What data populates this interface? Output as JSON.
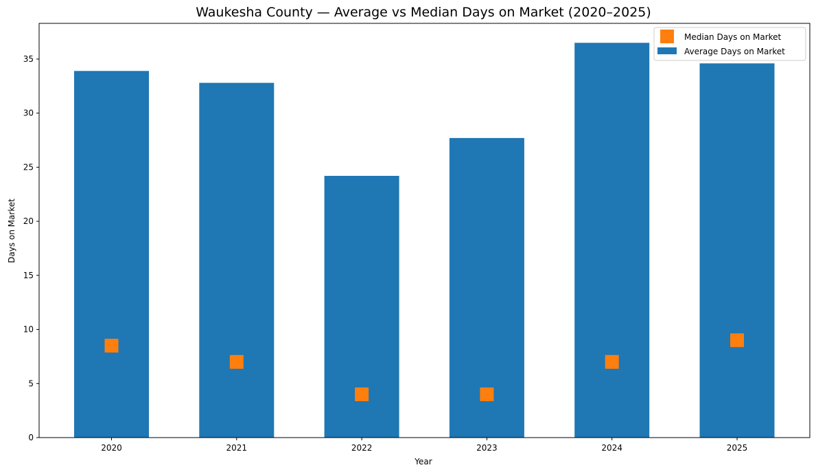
{
  "chart_data": {
    "type": "bar",
    "title": "Waukesha County — Average vs Median Days on Market (2020–2025)",
    "xlabel": "Year",
    "ylabel": "Days on Market",
    "categories": [
      "2020",
      "2021",
      "2022",
      "2023",
      "2024",
      "2025"
    ],
    "ylim": [
      0,
      38.3
    ],
    "yticks": [
      0,
      5,
      10,
      15,
      20,
      25,
      30,
      35
    ],
    "grid": false,
    "legend_position": "top-right",
    "series": [
      {
        "name": "Average Days on Market",
        "kind": "bar",
        "color": "#1f77b4",
        "values": [
          33.9,
          32.8,
          24.2,
          27.7,
          36.5,
          34.6
        ]
      },
      {
        "name": "Median Days on Market",
        "kind": "marker",
        "marker": "square",
        "color": "#ff7f0e",
        "values": [
          8.5,
          7,
          4,
          4,
          7,
          9
        ]
      }
    ]
  }
}
